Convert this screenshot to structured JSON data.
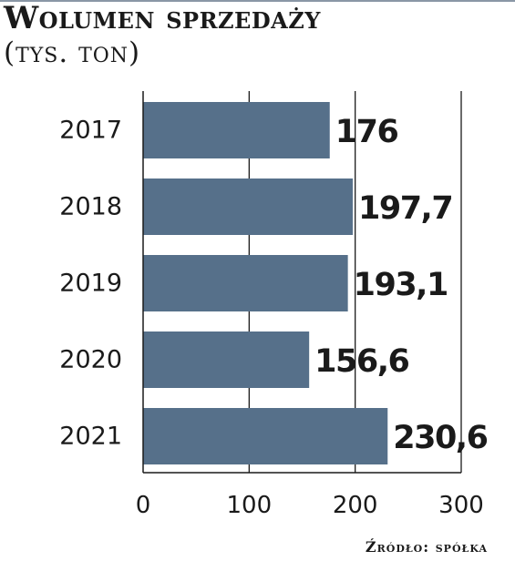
{
  "chart_data": {
    "type": "bar",
    "orientation": "horizontal",
    "title": "Wolumen sprzedaży",
    "subtitle": "(tys. ton)",
    "categories": [
      "2017",
      "2018",
      "2019",
      "2020",
      "2021"
    ],
    "values": [
      176,
      197.7,
      193.1,
      156.6,
      230.6
    ],
    "value_labels": [
      "176",
      "197,7",
      "193,1",
      "156,6",
      "230,6"
    ],
    "xlim": [
      0,
      300
    ],
    "xticks": [
      0,
      100,
      200,
      300
    ],
    "xtick_labels": [
      "0",
      "100",
      "200",
      "300"
    ],
    "grid": true,
    "legend": "none",
    "source": "Źródło: spółka",
    "bar_color": "#56708a"
  }
}
